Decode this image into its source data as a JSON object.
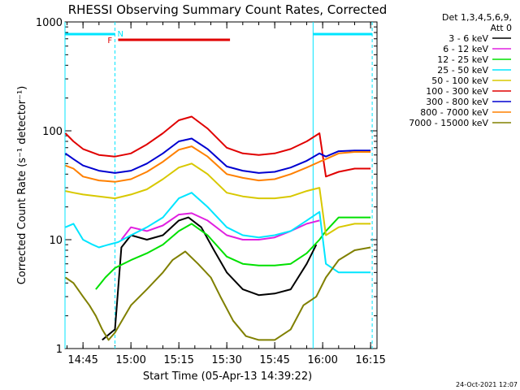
{
  "chart_data": {
    "type": "line",
    "title": "RHESSI Observing Summary Count Rates, Corrected",
    "xlabel": "Start Time (05-Apr-13 14:39:22)",
    "ylabel": "Corrected Count Rate (s⁻¹ detector⁻¹)",
    "y_scale": "log",
    "ylim": [
      1,
      1000
    ],
    "xlim": [
      "14:39:22",
      "16:17:00"
    ],
    "x_ticks": [
      "14:45",
      "15:00",
      "15:15",
      "15:30",
      "15:45",
      "16:00",
      "16:15"
    ],
    "y_ticks": [
      "1",
      "10",
      "100",
      "1000"
    ],
    "footer_date": "24-Oct-2021 12:07",
    "legend": {
      "placement": "right",
      "header_line1": "Det 1,3,4,5,6,9,",
      "header_line2": "Att 0"
    },
    "flags": {
      "eclipse_label": "N",
      "flare_label": "F",
      "eclipse_color": "#00e5ff",
      "flare_color": "#e00000",
      "eclipse_intervals": [
        [
          "14:39:22",
          "14:55:00"
        ],
        [
          "15:57:00",
          "16:15:30"
        ]
      ],
      "flare_interval": [
        "14:56:00",
        "15:31:00"
      ]
    },
    "eclipse_boundaries": [
      "14:55:00",
      "15:58:30"
    ],
    "series": [
      {
        "name": "3 - 6 keV",
        "color": "#000000",
        "points": [
          [
            "14:51:00",
            1.2
          ],
          [
            "14:55:00",
            1.5
          ],
          [
            "14:57:00",
            8.5
          ],
          [
            "15:00:00",
            11
          ],
          [
            "15:05:00",
            10
          ],
          [
            "15:10:00",
            11
          ],
          [
            "15:15:00",
            15
          ],
          [
            "15:18:00",
            16
          ],
          [
            "15:22:00",
            13
          ],
          [
            "15:26:00",
            8
          ],
          [
            "15:30:00",
            5
          ],
          [
            "15:35:00",
            3.5
          ],
          [
            "15:40:00",
            3.1
          ],
          [
            "15:45:00",
            3.2
          ],
          [
            "15:50:00",
            3.5
          ],
          [
            "15:55:00",
            6
          ],
          [
            "15:58:00",
            9
          ]
        ]
      },
      {
        "name": "6 - 12 keV",
        "color": "#e020e0",
        "points": [
          [
            "14:57:00",
            10
          ],
          [
            "15:00:00",
            13
          ],
          [
            "15:05:00",
            12
          ],
          [
            "15:10:00",
            13.5
          ],
          [
            "15:15:00",
            17
          ],
          [
            "15:19:00",
            17.5
          ],
          [
            "15:24:00",
            15
          ],
          [
            "15:30:00",
            11
          ],
          [
            "15:35:00",
            10
          ],
          [
            "15:40:00",
            10
          ],
          [
            "15:45:00",
            10.5
          ],
          [
            "15:50:00",
            12
          ],
          [
            "15:55:00",
            14
          ],
          [
            "15:59:00",
            15
          ]
        ]
      },
      {
        "name": "12 - 25 keV",
        "color": "#00e000",
        "points": [
          [
            "14:49:00",
            3.5
          ],
          [
            "14:52:00",
            4.5
          ],
          [
            "14:55:00",
            5.5
          ],
          [
            "15:00:00",
            6.5
          ],
          [
            "15:05:00",
            7.5
          ],
          [
            "15:10:00",
            9
          ],
          [
            "15:15:00",
            12
          ],
          [
            "15:19:00",
            14
          ],
          [
            "15:24:00",
            11
          ],
          [
            "15:30:00",
            7
          ],
          [
            "15:35:00",
            6
          ],
          [
            "15:40:00",
            5.8
          ],
          [
            "15:45:00",
            5.8
          ],
          [
            "15:50:00",
            6
          ],
          [
            "15:55:00",
            7.5
          ],
          [
            "15:59:00",
            10
          ],
          [
            "16:01:00",
            12
          ],
          [
            "16:05:00",
            16
          ],
          [
            "16:10:00",
            16
          ],
          [
            "16:15:00",
            16
          ]
        ]
      },
      {
        "name": "25 - 50 keV",
        "color": "#00e5ff",
        "points": [
          [
            "14:39:30",
            13
          ],
          [
            "14:42:00",
            14
          ],
          [
            "14:45:00",
            10
          ],
          [
            "14:48:00",
            9
          ],
          [
            "14:50:00",
            8.5
          ],
          [
            "14:53:00",
            9
          ],
          [
            "14:56:00",
            9.5
          ],
          [
            "15:00:00",
            11
          ],
          [
            "15:05:00",
            13
          ],
          [
            "15:10:00",
            16
          ],
          [
            "15:15:00",
            24
          ],
          [
            "15:19:00",
            27
          ],
          [
            "15:24:00",
            20
          ],
          [
            "15:30:00",
            13
          ],
          [
            "15:35:00",
            11
          ],
          [
            "15:40:00",
            10.5
          ],
          [
            "15:45:00",
            11
          ],
          [
            "15:50:00",
            12
          ],
          [
            "15:55:00",
            15
          ],
          [
            "15:59:00",
            18
          ],
          [
            "16:01:00",
            6
          ],
          [
            "16:05:00",
            5
          ],
          [
            "16:10:00",
            5
          ],
          [
            "16:15:00",
            5
          ]
        ]
      },
      {
        "name": "50 - 100 keV",
        "color": "#d8c800",
        "points": [
          [
            "14:39:30",
            28
          ],
          [
            "14:42:00",
            27
          ],
          [
            "14:45:00",
            26
          ],
          [
            "14:50:00",
            25
          ],
          [
            "14:55:00",
            24
          ],
          [
            "15:00:00",
            26
          ],
          [
            "15:05:00",
            29
          ],
          [
            "15:10:00",
            36
          ],
          [
            "15:15:00",
            46
          ],
          [
            "15:19:00",
            50
          ],
          [
            "15:24:00",
            40
          ],
          [
            "15:30:00",
            27
          ],
          [
            "15:35:00",
            25
          ],
          [
            "15:40:00",
            24
          ],
          [
            "15:45:00",
            24
          ],
          [
            "15:50:00",
            25
          ],
          [
            "15:55:00",
            28
          ],
          [
            "15:59:00",
            30
          ],
          [
            "16:01:00",
            11
          ],
          [
            "16:05:00",
            13
          ],
          [
            "16:10:00",
            14
          ],
          [
            "16:15:00",
            14
          ]
        ]
      },
      {
        "name": "100 - 300 keV",
        "color": "#e00000",
        "points": [
          [
            "14:39:30",
            95
          ],
          [
            "14:42:00",
            80
          ],
          [
            "14:45:00",
            68
          ],
          [
            "14:50:00",
            60
          ],
          [
            "14:55:00",
            58
          ],
          [
            "15:00:00",
            62
          ],
          [
            "15:05:00",
            75
          ],
          [
            "15:10:00",
            95
          ],
          [
            "15:15:00",
            125
          ],
          [
            "15:19:00",
            135
          ],
          [
            "15:24:00",
            105
          ],
          [
            "15:30:00",
            70
          ],
          [
            "15:35:00",
            62
          ],
          [
            "15:40:00",
            60
          ],
          [
            "15:45:00",
            62
          ],
          [
            "15:50:00",
            68
          ],
          [
            "15:55:00",
            80
          ],
          [
            "15:59:00",
            95
          ],
          [
            "16:01:00",
            38
          ],
          [
            "16:05:00",
            42
          ],
          [
            "16:10:00",
            45
          ],
          [
            "16:15:00",
            45
          ]
        ]
      },
      {
        "name": "300 - 800 keV",
        "color": "#0000d0",
        "points": [
          [
            "14:39:30",
            62
          ],
          [
            "14:42:00",
            55
          ],
          [
            "14:45:00",
            48
          ],
          [
            "14:50:00",
            43
          ],
          [
            "14:55:00",
            41
          ],
          [
            "15:00:00",
            43
          ],
          [
            "15:05:00",
            50
          ],
          [
            "15:10:00",
            62
          ],
          [
            "15:15:00",
            80
          ],
          [
            "15:19:00",
            85
          ],
          [
            "15:24:00",
            68
          ],
          [
            "15:30:00",
            47
          ],
          [
            "15:35:00",
            43
          ],
          [
            "15:40:00",
            41
          ],
          [
            "15:45:00",
            42
          ],
          [
            "15:50:00",
            46
          ],
          [
            "15:55:00",
            53
          ],
          [
            "15:59:00",
            62
          ],
          [
            "16:01:00",
            58
          ],
          [
            "16:05:00",
            65
          ],
          [
            "16:10:00",
            66
          ],
          [
            "16:15:00",
            66
          ]
        ]
      },
      {
        "name": "800 - 7000 keV",
        "color": "#ff8000",
        "points": [
          [
            "14:39:30",
            48
          ],
          [
            "14:42:00",
            45
          ],
          [
            "14:45:00",
            38
          ],
          [
            "14:50:00",
            35
          ],
          [
            "14:55:00",
            34
          ],
          [
            "15:00:00",
            36
          ],
          [
            "15:05:00",
            42
          ],
          [
            "15:10:00",
            52
          ],
          [
            "15:15:00",
            67
          ],
          [
            "15:19:00",
            72
          ],
          [
            "15:24:00",
            58
          ],
          [
            "15:30:00",
            40
          ],
          [
            "15:35:00",
            37
          ],
          [
            "15:40:00",
            35
          ],
          [
            "15:45:00",
            36
          ],
          [
            "15:50:00",
            40
          ],
          [
            "15:55:00",
            46
          ],
          [
            "15:59:00",
            52
          ],
          [
            "16:01:00",
            55
          ],
          [
            "16:05:00",
            62
          ],
          [
            "16:10:00",
            64
          ],
          [
            "16:15:00",
            64
          ]
        ]
      },
      {
        "name": "7000 - 15000 keV",
        "color": "#808000",
        "points": [
          [
            "14:39:30",
            4.5
          ],
          [
            "14:42:00",
            4
          ],
          [
            "14:45:00",
            3
          ],
          [
            "14:47:00",
            2.5
          ],
          [
            "14:49:00",
            2
          ],
          [
            "14:51:00",
            1.5
          ],
          [
            "14:53:00",
            1.2
          ],
          [
            "14:55:00",
            1.4
          ],
          [
            "15:00:00",
            2.5
          ],
          [
            "15:05:00",
            3.5
          ],
          [
            "15:10:00",
            5
          ],
          [
            "15:13:00",
            6.5
          ],
          [
            "15:17:00",
            7.8
          ],
          [
            "15:21:00",
            6
          ],
          [
            "15:25:00",
            4.5
          ],
          [
            "15:28:00",
            3
          ],
          [
            "15:32:00",
            1.8
          ],
          [
            "15:36:00",
            1.3
          ],
          [
            "15:40:00",
            1.2
          ],
          [
            "15:45:00",
            1.2
          ],
          [
            "15:50:00",
            1.5
          ],
          [
            "15:54:00",
            2.5
          ],
          [
            "15:58:00",
            3
          ],
          [
            "16:01:00",
            4.5
          ],
          [
            "16:05:00",
            6.5
          ],
          [
            "16:10:00",
            8
          ],
          [
            "16:15:00",
            8.5
          ]
        ]
      }
    ]
  }
}
